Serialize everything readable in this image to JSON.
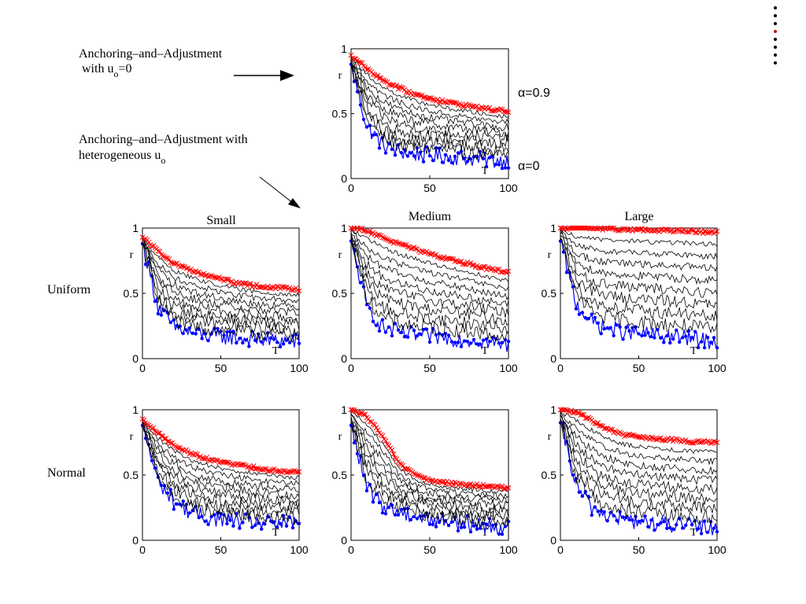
{
  "annotations": {
    "top_label_line1": "Anchoring–and–Adjustment",
    "top_label_line2": "with u",
    "top_label_sub": "o",
    "top_label_tail": "=0",
    "hetero_label_line1": "Anchoring–and–Adjustment with",
    "hetero_label_line2": "heterogeneous u",
    "hetero_label_sub": "o",
    "alpha_high": "α=0.9",
    "alpha_low": "α=0"
  },
  "column_titles": [
    "Small",
    "Medium",
    "Large"
  ],
  "row_titles": [
    "Uniform",
    "Normal"
  ],
  "nav": {
    "total": 8,
    "active": 4
  },
  "colors": {
    "alpha_high": "#ff0000",
    "alpha_low": "#0000ff",
    "intermediate": "#000000"
  },
  "chart_data": [
    {
      "id": "homogeneous",
      "type": "line",
      "xlabel": "T",
      "ylabel": "r",
      "xlim": [
        0,
        100
      ],
      "ylim": [
        0,
        1
      ],
      "xticks": [
        0,
        50,
        100
      ],
      "yticks": [
        0,
        0.5,
        1
      ],
      "series_count": 10,
      "series": [
        {
          "alpha": 0.9,
          "marker": "x",
          "values": [
            0.95,
            0.85,
            0.76,
            0.7,
            0.65,
            0.62,
            0.59,
            0.57,
            0.55,
            0.53,
            0.52
          ]
        },
        {
          "alpha": 0,
          "marker": "dot",
          "values": [
            0.88,
            0.4,
            0.26,
            0.21,
            0.19,
            0.18,
            0.17,
            0.16,
            0.15,
            0.14,
            0.14
          ]
        }
      ]
    },
    {
      "id": "uniform-small",
      "type": "line",
      "xlabel": "T",
      "ylabel": "r",
      "xlim": [
        0,
        100
      ],
      "ylim": [
        0,
        1
      ],
      "xticks": [
        0,
        50,
        100
      ],
      "yticks": [
        0,
        0.5,
        1
      ],
      "series_count": 10,
      "series": [
        {
          "alpha": 0.9,
          "marker": "x",
          "values": [
            0.93,
            0.82,
            0.73,
            0.68,
            0.64,
            0.61,
            0.58,
            0.56,
            0.55,
            0.54,
            0.53
          ]
        },
        {
          "alpha": 0,
          "marker": "dot",
          "values": [
            0.88,
            0.4,
            0.24,
            0.2,
            0.18,
            0.17,
            0.16,
            0.15,
            0.14,
            0.14,
            0.13
          ]
        }
      ]
    },
    {
      "id": "uniform-medium",
      "type": "line",
      "xlabel": "T",
      "ylabel": "r",
      "xlim": [
        0,
        100
      ],
      "ylim": [
        0,
        1
      ],
      "xticks": [
        0,
        50,
        100
      ],
      "yticks": [
        0,
        0.5,
        1
      ],
      "series_count": 10,
      "series": [
        {
          "alpha": 0.9,
          "marker": "x",
          "values": [
            1.0,
            0.98,
            0.93,
            0.88,
            0.84,
            0.8,
            0.77,
            0.74,
            0.71,
            0.68,
            0.66
          ]
        },
        {
          "alpha": 0,
          "marker": "dot",
          "values": [
            0.9,
            0.4,
            0.24,
            0.2,
            0.18,
            0.17,
            0.16,
            0.15,
            0.14,
            0.12,
            0.1
          ]
        }
      ]
    },
    {
      "id": "uniform-large",
      "type": "line",
      "xlabel": "T",
      "ylabel": "r",
      "xlim": [
        0,
        100
      ],
      "ylim": [
        0,
        1
      ],
      "xticks": [
        0,
        50,
        100
      ],
      "yticks": [
        0,
        0.5,
        1
      ],
      "series_count": 10,
      "series": [
        {
          "alpha": 0.9,
          "marker": "x",
          "values": [
            1.0,
            1.0,
            1.0,
            0.99,
            0.99,
            0.99,
            0.98,
            0.98,
            0.98,
            0.97,
            0.97
          ]
        },
        {
          "alpha": 0,
          "marker": "dot",
          "values": [
            0.9,
            0.42,
            0.28,
            0.23,
            0.21,
            0.19,
            0.18,
            0.17,
            0.16,
            0.14,
            0.13
          ]
        }
      ]
    },
    {
      "id": "normal-small",
      "type": "line",
      "xlabel": "T",
      "ylabel": "r",
      "xlim": [
        0,
        100
      ],
      "ylim": [
        0,
        1
      ],
      "xticks": [
        0,
        50,
        100
      ],
      "yticks": [
        0,
        0.5,
        1
      ],
      "series_count": 10,
      "series": [
        {
          "alpha": 0.9,
          "marker": "x",
          "values": [
            0.93,
            0.82,
            0.73,
            0.67,
            0.63,
            0.6,
            0.58,
            0.56,
            0.54,
            0.53,
            0.52
          ]
        },
        {
          "alpha": 0,
          "marker": "dot",
          "values": [
            0.88,
            0.45,
            0.3,
            0.22,
            0.18,
            0.16,
            0.15,
            0.14,
            0.13,
            0.13,
            0.13
          ]
        }
      ]
    },
    {
      "id": "normal-medium",
      "type": "line",
      "xlabel": "T",
      "ylabel": "r",
      "xlim": [
        0,
        100
      ],
      "ylim": [
        0,
        1
      ],
      "xticks": [
        0,
        50,
        100
      ],
      "yticks": [
        0,
        0.5,
        1
      ],
      "series_count": 10,
      "series": [
        {
          "alpha": 0.9,
          "marker": "x",
          "values": [
            1.0,
            0.95,
            0.8,
            0.6,
            0.5,
            0.46,
            0.44,
            0.43,
            0.42,
            0.41,
            0.4
          ]
        },
        {
          "alpha": 0,
          "marker": "dot",
          "values": [
            0.88,
            0.4,
            0.27,
            0.22,
            0.19,
            0.16,
            0.15,
            0.13,
            0.12,
            0.11,
            0.1
          ]
        }
      ]
    },
    {
      "id": "normal-large",
      "type": "line",
      "xlabel": "T",
      "ylabel": "r",
      "xlim": [
        0,
        100
      ],
      "ylim": [
        0,
        1
      ],
      "xticks": [
        0,
        50,
        100
      ],
      "yticks": [
        0,
        0.5,
        1
      ],
      "series_count": 10,
      "series": [
        {
          "alpha": 0.9,
          "marker": "x",
          "values": [
            1.0,
            0.98,
            0.92,
            0.85,
            0.81,
            0.79,
            0.78,
            0.77,
            0.76,
            0.75,
            0.75
          ]
        },
        {
          "alpha": 0,
          "marker": "dot",
          "values": [
            0.9,
            0.42,
            0.25,
            0.19,
            0.16,
            0.14,
            0.13,
            0.12,
            0.11,
            0.1,
            0.1
          ]
        }
      ]
    }
  ]
}
